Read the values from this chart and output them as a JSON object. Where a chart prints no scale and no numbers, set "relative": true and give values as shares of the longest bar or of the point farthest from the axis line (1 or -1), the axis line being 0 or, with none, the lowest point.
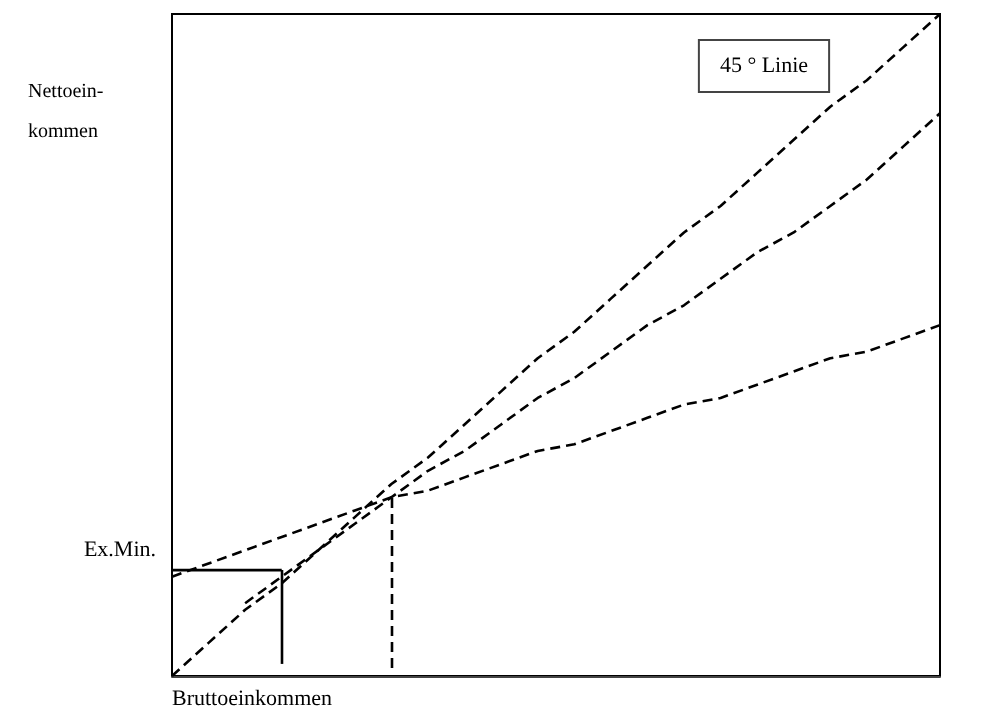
{
  "chart_data": {
    "type": "line",
    "relative": true,
    "xlabel": "Bruttoeinkommen",
    "ylabel": "Nettoein-\nkommen",
    "categories": [
      null,
      null,
      null,
      null,
      null,
      null,
      null,
      null,
      null,
      null,
      null,
      null,
      null,
      null,
      null,
      null,
      null,
      null,
      null,
      null,
      null,
      null
    ],
    "grid": false,
    "marker": "none",
    "series": [
      {
        "color": "#000000",
        "line_style": "dashed",
        "values": [
          0,
          0.05,
          0.1,
          0.14,
          0.19,
          0.24,
          0.29,
          0.33,
          0.38,
          0.43,
          0.48,
          0.52,
          0.57,
          0.62,
          0.67,
          0.71,
          0.76,
          0.81,
          0.86,
          0.9,
          0.95,
          1
        ]
      },
      {
        "color": "#000000",
        "line_style": "dashed",
        "values": [
          0.15,
          0.17,
          0.19,
          0.21,
          0.23,
          0.25,
          0.27,
          0.28,
          0.3,
          0.32,
          0.34,
          0.35,
          0.37,
          0.39,
          0.41,
          0.42,
          0.44,
          0.46,
          0.48,
          0.49,
          0.51,
          0.53
        ]
      },
      {
        "color": "#000000",
        "line_style": "dashed",
        "values": [
          null,
          null,
          0.11,
          0.15,
          0.19,
          0.23,
          0.27,
          0.31,
          0.34,
          0.38,
          0.42,
          0.45,
          0.49,
          0.53,
          0.56,
          0.6,
          0.64,
          0.67,
          0.71,
          0.75,
          0.8,
          0.85
        ]
      },
      {
        "color": "#000000",
        "line_style": "solid",
        "values": [
          0.16,
          0.16,
          0.16,
          0.16,
          null,
          null,
          null,
          null,
          null,
          null,
          null,
          null,
          null,
          null,
          null,
          null,
          null,
          null,
          null,
          null,
          null,
          null
        ]
      }
    ],
    "annotations": [
      "45 ° Linie",
      "Ex.Min."
    ]
  }
}
